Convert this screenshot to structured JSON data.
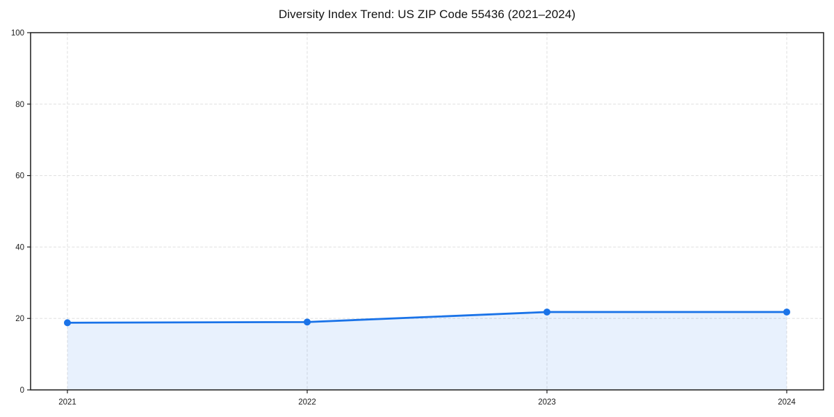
{
  "chart_data": {
    "type": "area",
    "title": "Diversity Index Trend: US ZIP Code 55436 (2021–2024)",
    "x": [
      "2021",
      "2022",
      "2023",
      "2024"
    ],
    "series": [
      {
        "name": "Diversity Index",
        "values": [
          18.8,
          19.0,
          21.8,
          21.8
        ]
      }
    ],
    "xlabel": "",
    "ylabel": "",
    "ylim": [
      0,
      100
    ],
    "yticks": [
      0,
      20,
      40,
      60,
      80,
      100
    ],
    "grid": "dashed, both axes",
    "legend": "none",
    "colors": {
      "line": "#1a73e8",
      "marker": "#1a73e8",
      "fill": "#1a73e8",
      "fill_opacity": 0.1,
      "gridline": "#e2e2e2",
      "spine": "#1a1a1a",
      "tick_text": "#1a1a1a",
      "background": "#ffffff"
    }
  }
}
